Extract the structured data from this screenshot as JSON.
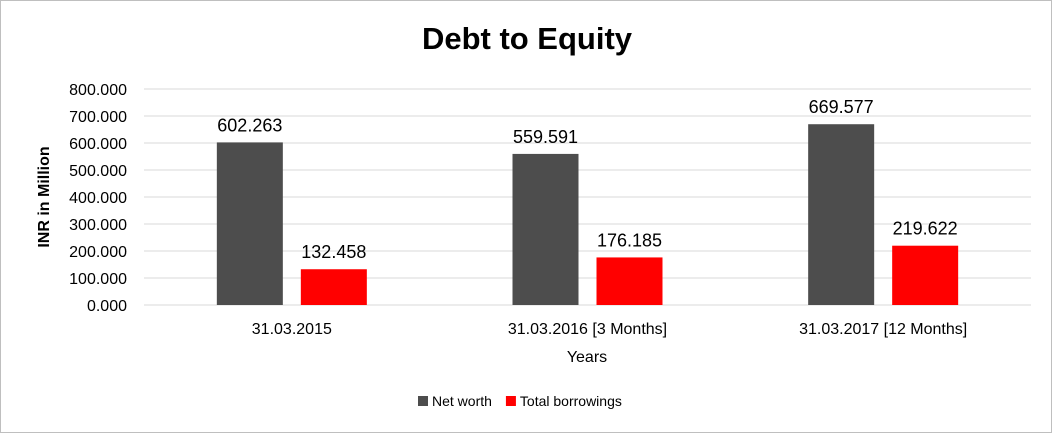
{
  "chart_data": {
    "type": "bar",
    "title": "Debt to Equity",
    "xlabel": "Years",
    "ylabel": "INR in Million",
    "categories": [
      "31.03.2015",
      "31.03.2016 [3 Months]",
      "31.03.2017 [12 Months]"
    ],
    "series": [
      {
        "name": "Net worth",
        "values": [
          602.263,
          559.591,
          669.577
        ],
        "color": "#4d4d4d",
        "labels": [
          "602.263",
          "559.591",
          "669.577"
        ]
      },
      {
        "name": "Total borrowings",
        "values": [
          132.458,
          176.185,
          219.622
        ],
        "color": "#ff0000",
        "labels": [
          "132.458",
          "176.185",
          "219.622"
        ]
      }
    ],
    "ylim": [
      0,
      800
    ],
    "yticks": [
      0,
      100,
      200,
      300,
      400,
      500,
      600,
      700,
      800
    ],
    "ytick_labels": [
      "0.000",
      "100.000",
      "200.000",
      "300.000",
      "400.000",
      "500.000",
      "600.000",
      "700.000",
      "800.000"
    ],
    "grid": true,
    "gridline_color": "#d9d9d9",
    "legend_position": "bottom"
  }
}
